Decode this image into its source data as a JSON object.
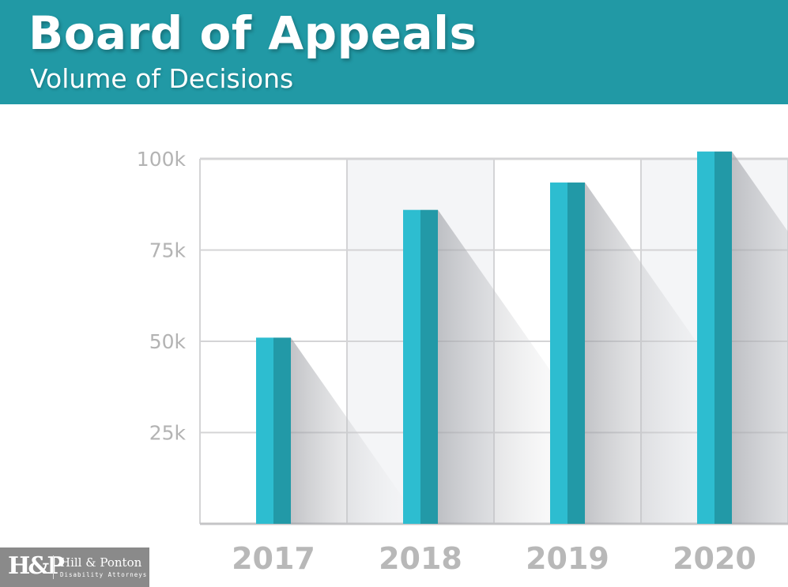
{
  "header": {
    "title": "Board of Appeals",
    "subtitle": "Volume of Decisions"
  },
  "logo": {
    "mark": "H&P",
    "name": "Hill & Ponton",
    "tagline": "Disability Attorneys"
  },
  "colors": {
    "header": "#2199a5",
    "bar_light": "#2dbdd0",
    "bar_dark": "#2299a7",
    "grid": "#d4d4d6",
    "label": "#b3b3b3"
  },
  "chart_data": {
    "type": "bar",
    "title": "Board of Appeals",
    "subtitle": "Volume of Decisions",
    "categories": [
      "2017",
      "2018",
      "2019",
      "2020"
    ],
    "values": [
      51000,
      86000,
      93500,
      102000
    ],
    "xlabel": "",
    "ylabel": "",
    "ylim": [
      0,
      100000
    ],
    "yticks": [
      {
        "value": 25000,
        "label": "25k"
      },
      {
        "value": 50000,
        "label": "50k"
      },
      {
        "value": 75000,
        "label": "75k"
      },
      {
        "value": 100000,
        "label": "100k"
      }
    ],
    "grid": true
  }
}
